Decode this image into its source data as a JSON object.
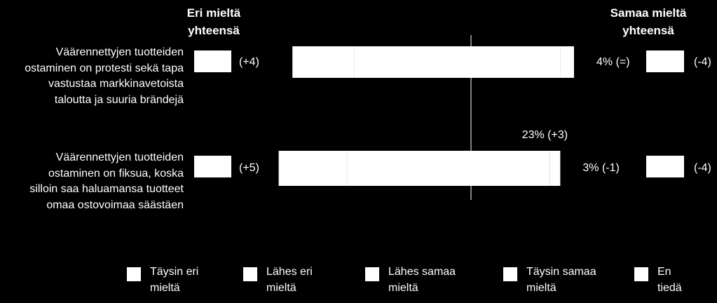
{
  "chart_data": {
    "type": "diverging_bar",
    "left_header": "Eri mieltä yhteensä",
    "right_header": "Samaa mieltä yhteensä",
    "categories": [
      "Väärennettyjen tuotteiden ostaminen on protesti sekä tapa vastustaa markkinavetoista taloutta ja suuria brändejä",
      "Väärennettyjen tuotteiden ostaminen on fiksua, koska silloin saa haluamansa tuotteet omaa ostovoimaa säästäen"
    ],
    "left_changes": [
      "(+4)",
      "(+5)"
    ],
    "right_changes": [
      "(-4)",
      "(-4)"
    ],
    "series": [
      {
        "name": "Täysin eri mieltä",
        "color": "#ffffff",
        "side": "left",
        "values": [
          18,
          20
        ]
      },
      {
        "name": "Lähes eri mieltä",
        "color": "#ffffff",
        "side": "left",
        "values": [
          34,
          36
        ]
      },
      {
        "name": "Lähes samaa mieltä",
        "color": "#ffffff",
        "side": "right",
        "values": [
          26,
          23
        ],
        "value_labels": [
          null,
          "23% (+3)"
        ]
      },
      {
        "name": "Täysin samaa mieltä",
        "color": "#ffffff",
        "side": "right",
        "values": [
          4,
          3
        ],
        "value_labels": [
          "4% (=)",
          "3% (-1)"
        ]
      },
      {
        "name": "En tiedä",
        "color": "#ffffff",
        "side": "none",
        "values": [
          null,
          null
        ]
      }
    ]
  }
}
